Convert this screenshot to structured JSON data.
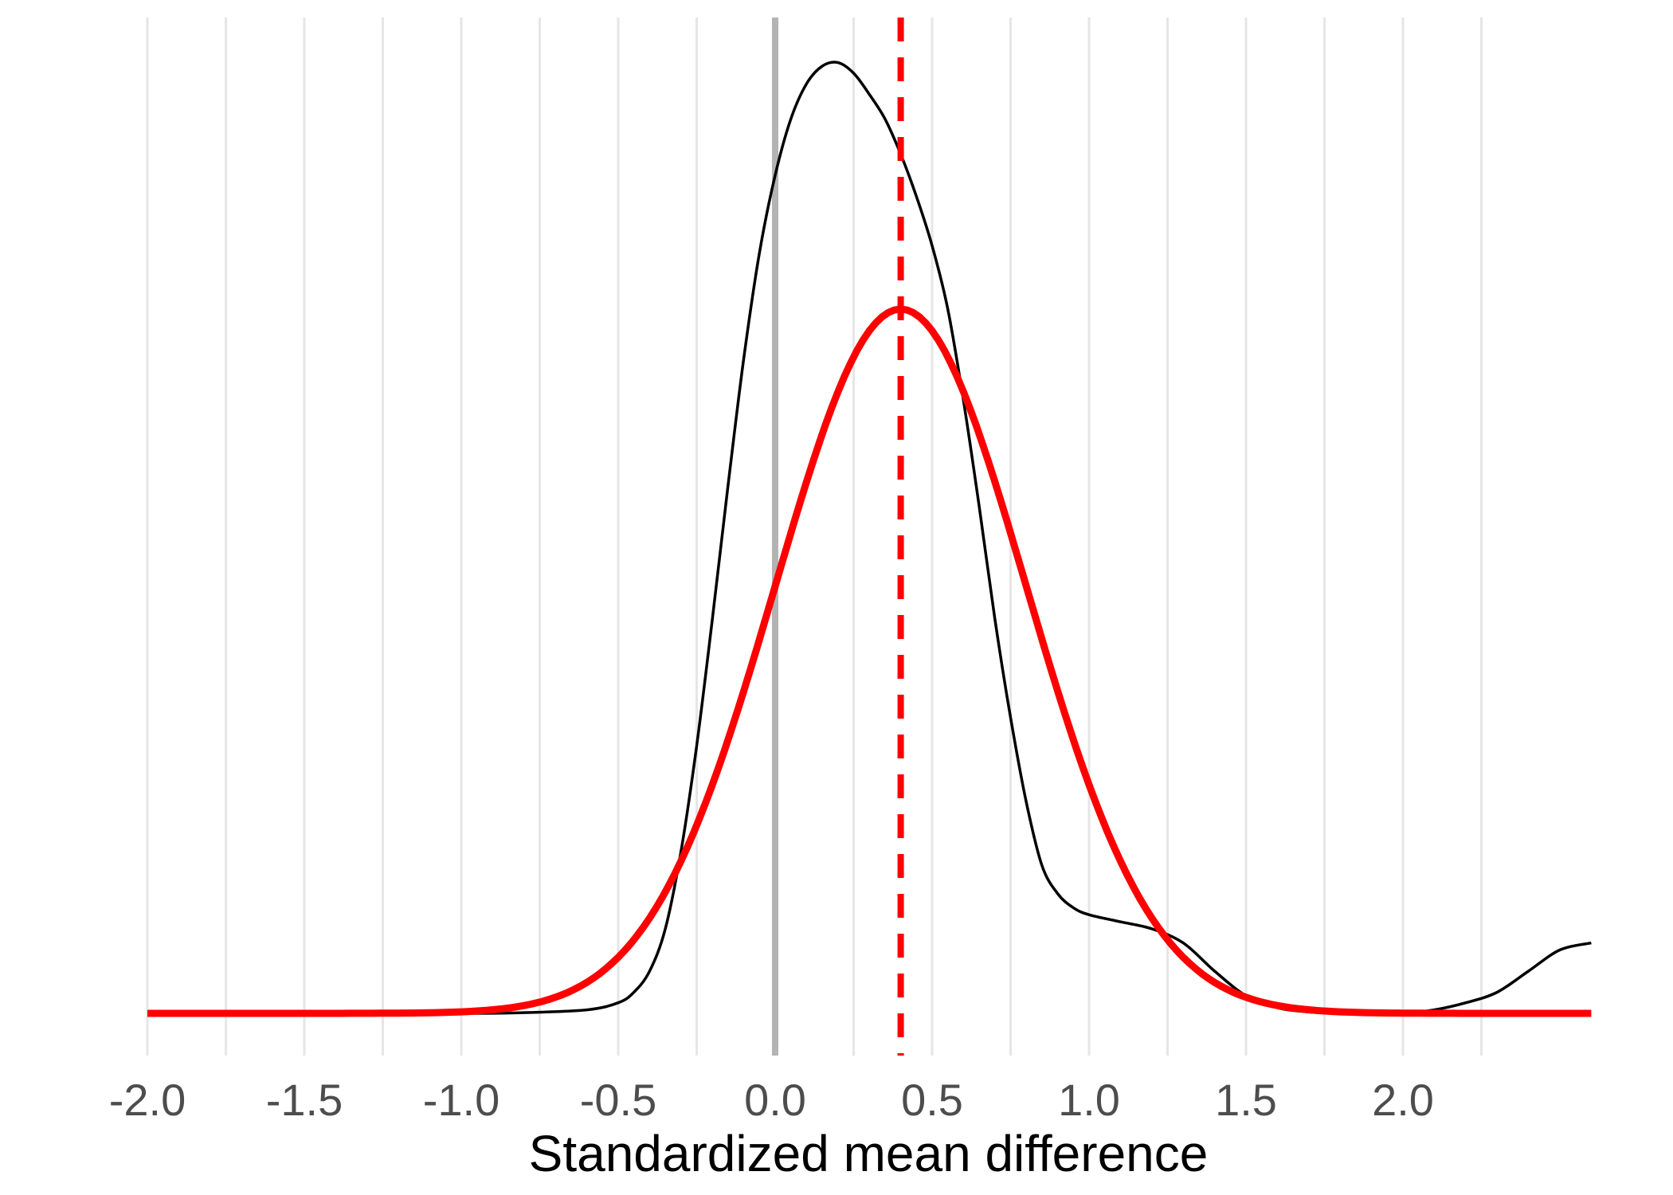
{
  "chart_data": {
    "type": "line",
    "title": "",
    "xlabel": "Standardized mean difference",
    "ylabel": "",
    "xlim": [
      -2.0,
      2.6
    ],
    "ylim": [
      0,
      1.25
    ],
    "x_ticks": [
      -2.0,
      -1.5,
      -1.0,
      -0.5,
      0.0,
      0.5,
      1.0,
      1.5,
      2.0
    ],
    "x_tick_labels": [
      "-2.0",
      "-1.5",
      "-1.0",
      "-0.5",
      "0.0",
      "0.5",
      "1.0",
      "1.5",
      "2.0"
    ],
    "x_minor_ticks": [
      -1.75,
      -1.25,
      -0.75,
      -0.25,
      0.25,
      0.75,
      1.25,
      1.75,
      2.25
    ],
    "grid": "vertical only",
    "reference_line": {
      "x": 0.0,
      "color": "#b3b3b3"
    },
    "mean_line": {
      "x": 0.4,
      "color": "#ff0000",
      "style": "dashed"
    },
    "series": [
      {
        "kind": "empirical density",
        "color": "#000000",
        "x": [
          -2.0,
          -1.5,
          -1.0,
          -0.8,
          -0.6,
          -0.5,
          -0.45,
          -0.4,
          -0.35,
          -0.3,
          -0.25,
          -0.2,
          -0.15,
          -0.1,
          -0.05,
          0.0,
          0.05,
          0.1,
          0.15,
          0.2,
          0.25,
          0.3,
          0.35,
          0.4,
          0.45,
          0.5,
          0.55,
          0.6,
          0.65,
          0.7,
          0.75,
          0.8,
          0.85,
          0.9,
          0.95,
          1.0,
          1.1,
          1.2,
          1.3,
          1.4,
          1.5,
          1.6,
          1.7,
          1.8,
          1.9,
          2.0,
          2.1,
          2.2,
          2.3,
          2.4,
          2.5,
          2.6
        ],
        "y": [
          0.0,
          0.0,
          0.0,
          0.001,
          0.005,
          0.015,
          0.03,
          0.06,
          0.12,
          0.23,
          0.38,
          0.56,
          0.75,
          0.93,
          1.08,
          1.19,
          1.27,
          1.32,
          1.345,
          1.35,
          1.335,
          1.305,
          1.27,
          1.22,
          1.16,
          1.09,
          1.0,
          0.87,
          0.72,
          0.56,
          0.42,
          0.3,
          0.21,
          0.17,
          0.15,
          0.14,
          0.13,
          0.12,
          0.1,
          0.06,
          0.025,
          0.008,
          0.002,
          0.0,
          0.0,
          0.0,
          0.005,
          0.015,
          0.03,
          0.06,
          0.09,
          0.1
        ]
      },
      {
        "kind": "normal density",
        "color": "#ff0000",
        "mean": 0.4,
        "sd": 0.4,
        "peak": 1.0
      }
    ]
  }
}
